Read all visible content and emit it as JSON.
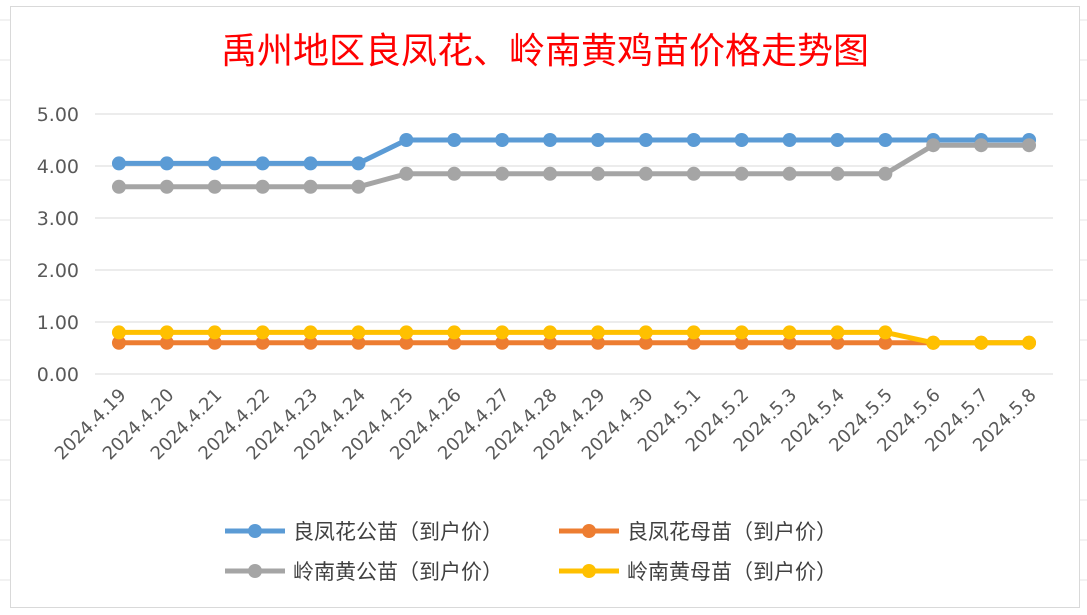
{
  "chart_data": {
    "type": "line",
    "title": "禹州地区良凤花、岭南黄鸡苗价格走势图",
    "xlabel": "",
    "ylabel": "",
    "ylim": [
      0,
      5
    ],
    "yticks": [
      "0.00",
      "1.00",
      "2.00",
      "3.00",
      "4.00",
      "5.00"
    ],
    "grid": true,
    "legend_position": "bottom",
    "categories": [
      "2024.4.19",
      "2024.4.20",
      "2024.4.21",
      "2024.4.22",
      "2024.4.23",
      "2024.4.24",
      "2024.4.25",
      "2024.4.26",
      "2024.4.27",
      "2024.4.28",
      "2024.4.29",
      "2024.4.30",
      "2024.5.1",
      "2024.5.2",
      "2024.5.3",
      "2024.5.4",
      "2024.5.5",
      "2024.5.6",
      "2024.5.7",
      "2024.5.8"
    ],
    "series": [
      {
        "name": "良凤花公苗（到户价）",
        "color": "#5b9bd5",
        "values": [
          4.05,
          4.05,
          4.05,
          4.05,
          4.05,
          4.05,
          4.5,
          4.5,
          4.5,
          4.5,
          4.5,
          4.5,
          4.5,
          4.5,
          4.5,
          4.5,
          4.5,
          4.5,
          4.5,
          4.5
        ]
      },
      {
        "name": "良凤花母苗（到户价）",
        "color": "#ed7d31",
        "values": [
          0.6,
          0.6,
          0.6,
          0.6,
          0.6,
          0.6,
          0.6,
          0.6,
          0.6,
          0.6,
          0.6,
          0.6,
          0.6,
          0.6,
          0.6,
          0.6,
          0.6,
          0.6,
          0.6,
          0.6
        ]
      },
      {
        "name": "岭南黄公苗（到户价）",
        "color": "#a5a5a5",
        "values": [
          3.6,
          3.6,
          3.6,
          3.6,
          3.6,
          3.6,
          3.85,
          3.85,
          3.85,
          3.85,
          3.85,
          3.85,
          3.85,
          3.85,
          3.85,
          3.85,
          3.85,
          4.4,
          4.4,
          4.4
        ]
      },
      {
        "name": "岭南黄母苗（到户价）",
        "color": "#ffc000",
        "values": [
          0.8,
          0.8,
          0.8,
          0.8,
          0.8,
          0.8,
          0.8,
          0.8,
          0.8,
          0.8,
          0.8,
          0.8,
          0.8,
          0.8,
          0.8,
          0.8,
          0.8,
          0.6,
          0.6,
          0.6
        ]
      }
    ]
  }
}
